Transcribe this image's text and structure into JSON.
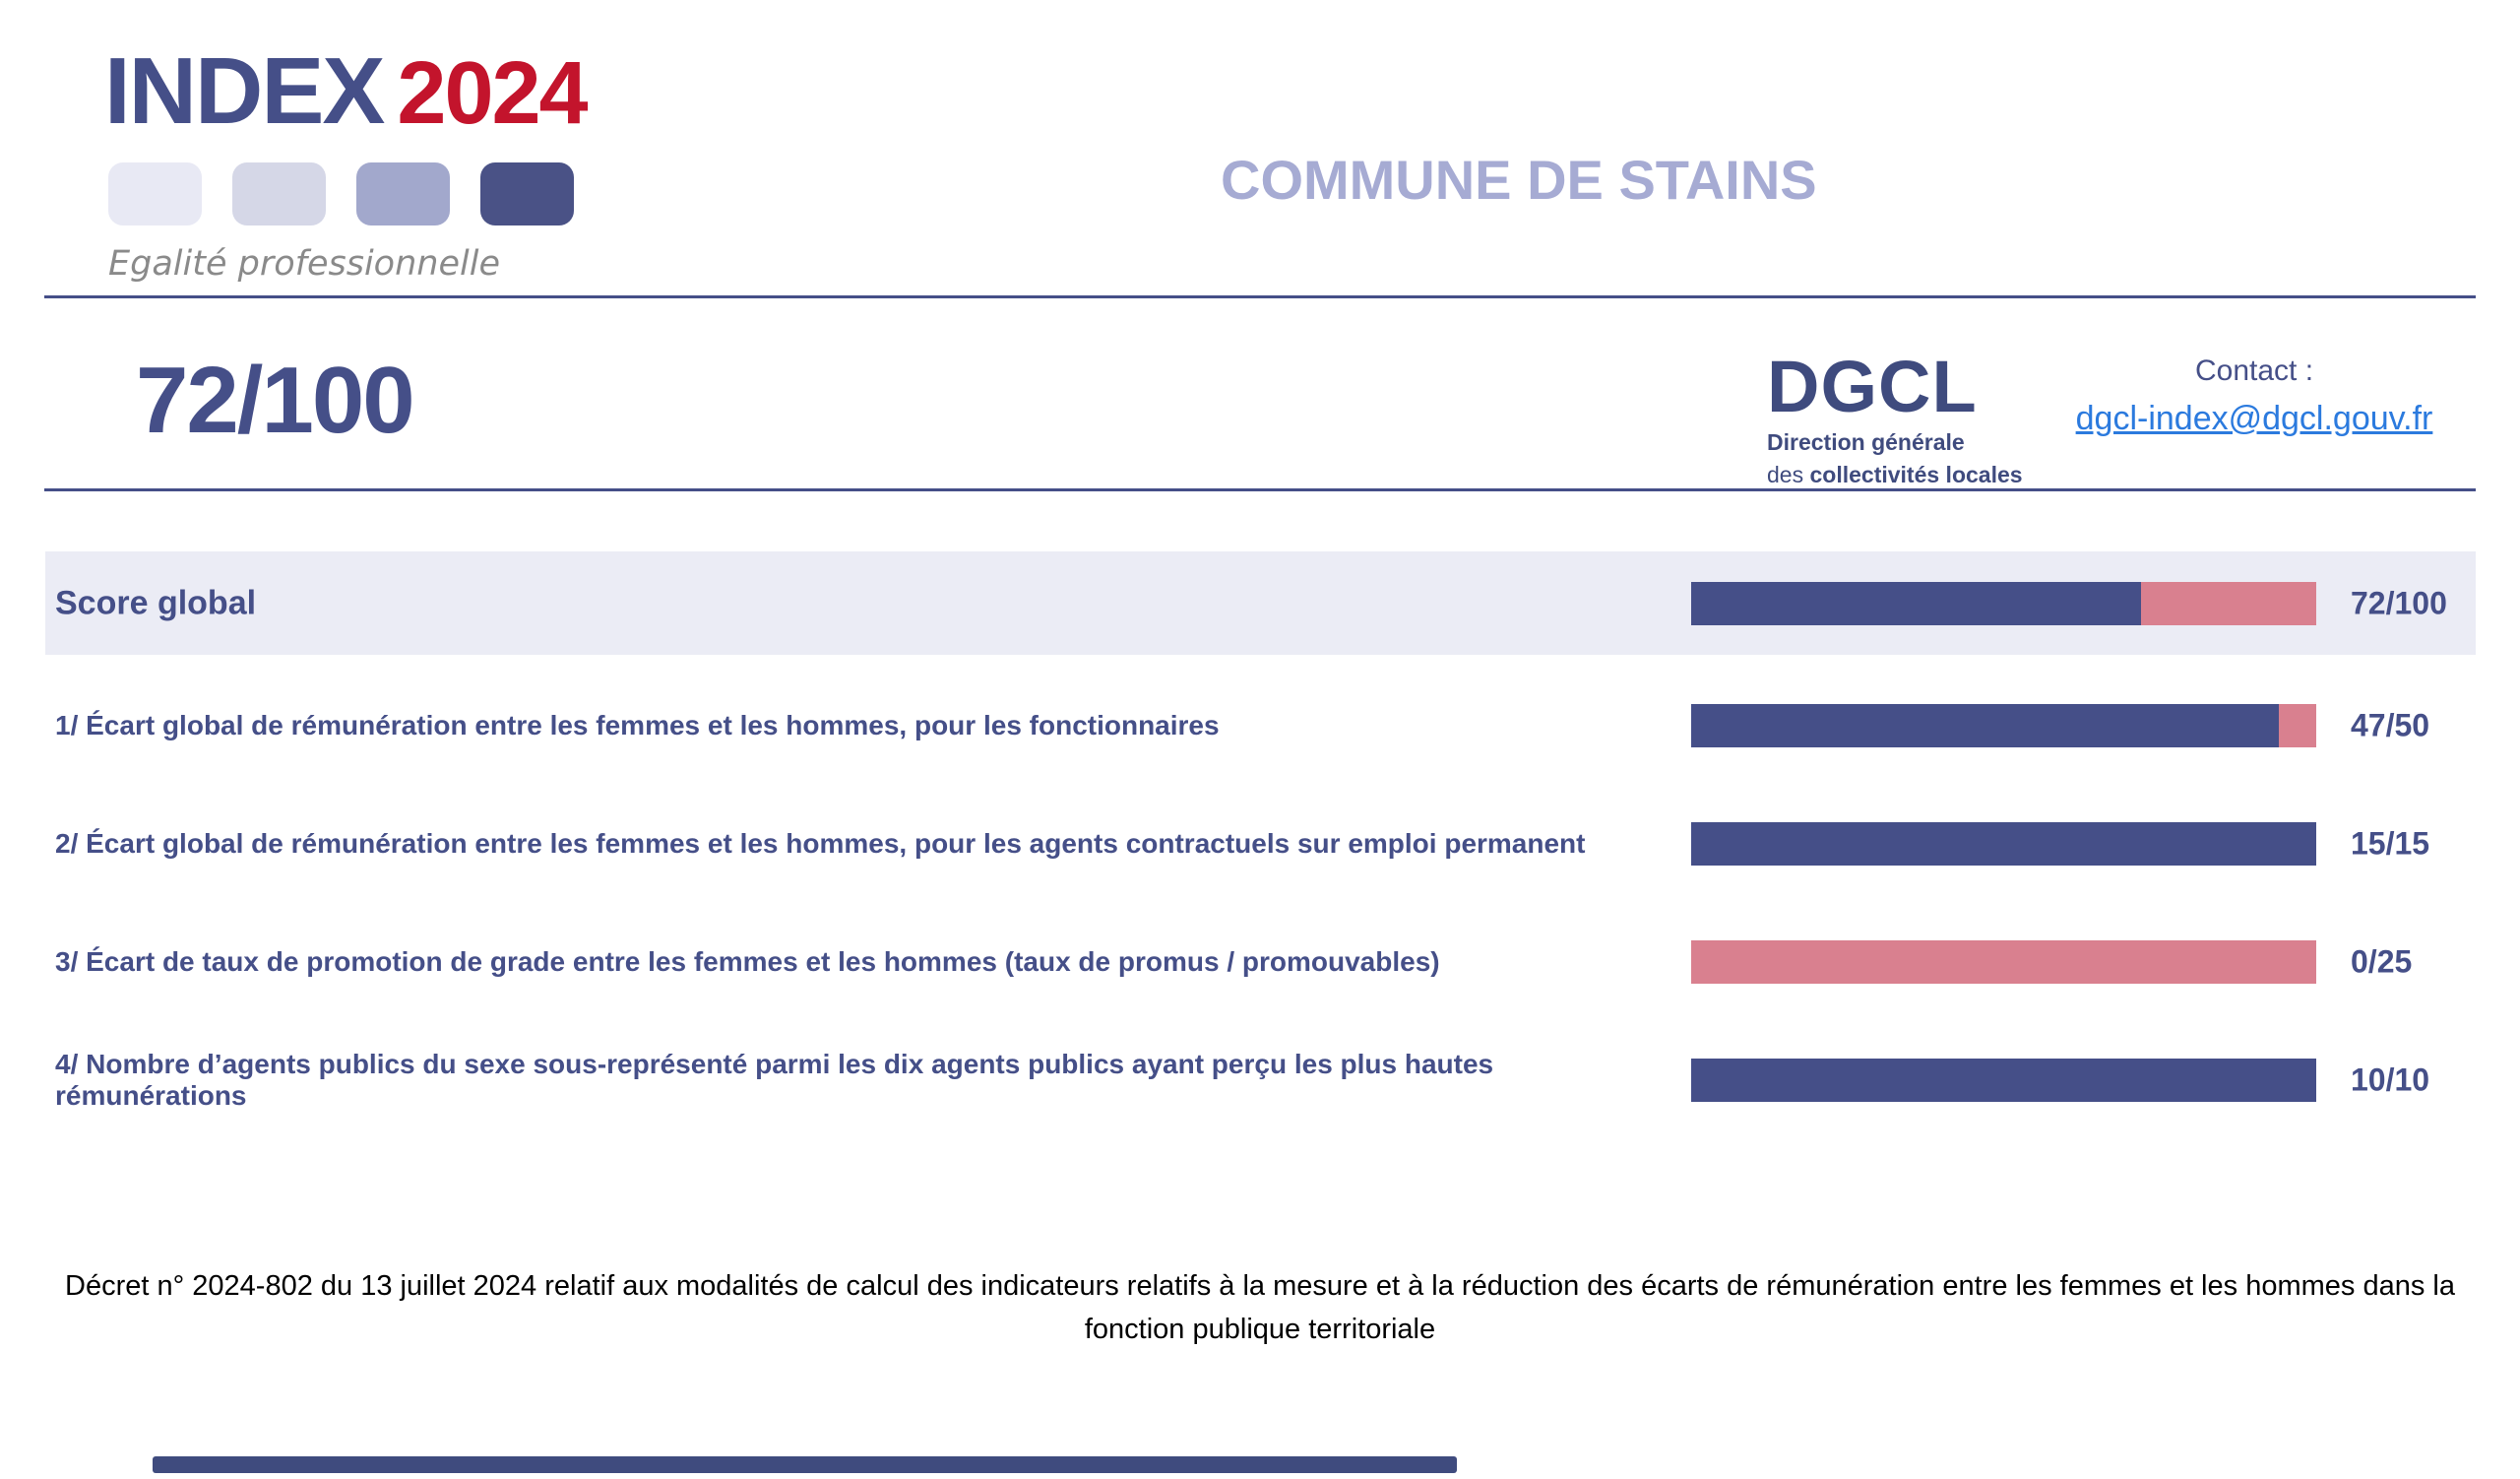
{
  "palette": {
    "navy": "#454f88",
    "pink": "#d9808f",
    "red": "#c3142c",
    "periwinkle": "#a6abd3",
    "band": "#ebecf5",
    "link": "#2b7ade",
    "dgcl-navy": "#3f4b7e"
  },
  "header": {
    "logo": {
      "title_index": "INDEX",
      "title_year": "2024",
      "subtitle": "Egalité professionnelle",
      "square_colors": [
        "#e8e9f4",
        "#d5d7e7",
        "#a2a8cc",
        "#4a5286"
      ]
    },
    "entity_name": "COMMUNE DE STAINS"
  },
  "score_banner": {
    "score": "72/100",
    "dgcl": {
      "acronym": "DGCL",
      "line1": "Direction générale",
      "line2_regular": "des ",
      "line2_bold": "collectivités locales"
    },
    "contact": {
      "label": "Contact :",
      "email": "dgcl-index@dgcl.gouv.fr"
    }
  },
  "chart_data": {
    "type": "bar",
    "title": "INDEX 2024 Egalité professionnelle — COMMUNE DE STAINS",
    "global_score": "72/100",
    "legend_position": "none",
    "colors": {
      "achieved": "#454f88",
      "remaining": "#d9808f"
    },
    "rows": [
      {
        "label": "Score global",
        "value": 72,
        "max": 100,
        "display": "72/100",
        "highlight": true
      },
      {
        "label": "1/ Écart global de rémunération entre les femmes et les hommes, pour les fonctionnaires",
        "value": 47,
        "max": 50,
        "display": "47/50",
        "highlight": false
      },
      {
        "label": "2/ Écart global de rémunération entre les femmes et les hommes, pour les agents contractuels sur emploi permanent",
        "value": 15,
        "max": 15,
        "display": "15/15",
        "highlight": false
      },
      {
        "label": "3/ Écart de taux de promotion de grade entre les femmes et les hommes (taux de promus / promouvables)",
        "value": 0,
        "max": 25,
        "display": "0/25",
        "highlight": false
      },
      {
        "label": "4/ Nombre d’agents publics du sexe sous-représenté parmi les dix agents publics ayant perçu les plus hautes rémunérations",
        "value": 10,
        "max": 10,
        "display": "10/10",
        "highlight": false
      }
    ]
  },
  "footer": {
    "decree_text": "Décret n° 2024-802 du 13 juillet 2024 relatif aux modalités de calcul des indicateurs relatifs à la mesure et à la réduction des écarts de rémunération entre les femmes et les hommes dans la fonction publique territoriale"
  }
}
